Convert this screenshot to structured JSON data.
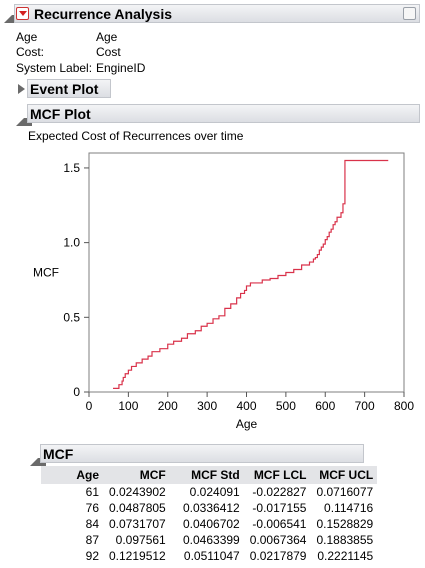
{
  "report": {
    "title": "Recurrence Analysis",
    "info": [
      {
        "label": "Age",
        "value": "Age"
      },
      {
        "label": "Cost:",
        "value": "Cost"
      },
      {
        "label": "System Label:",
        "value": "EngineID"
      }
    ]
  },
  "event_plot": {
    "title": "Event Plot"
  },
  "mcf_plot": {
    "title": "MCF Plot",
    "subtitle": "Expected Cost of Recurrences over time"
  },
  "chart_data": {
    "type": "line",
    "title": "Expected Cost of Recurrences over time",
    "xlabel": "Age",
    "ylabel": "MCF",
    "xlim": [
      0,
      800
    ],
    "ylim": [
      0,
      1.6
    ],
    "xticks": [
      "0",
      "100",
      "200",
      "300",
      "400",
      "500",
      "600",
      "700",
      "800"
    ],
    "yticks": [
      "0",
      "0.5",
      "1.0",
      "1.5"
    ],
    "grid": false,
    "line_color": "#d9324a",
    "step": true,
    "x": [
      61,
      76,
      84,
      87,
      92,
      100,
      108,
      120,
      135,
      150,
      160,
      180,
      200,
      215,
      235,
      250,
      270,
      285,
      300,
      315,
      330,
      345,
      360,
      375,
      385,
      395,
      400,
      410,
      420,
      440,
      460,
      480,
      500,
      520,
      540,
      560,
      570,
      575,
      580,
      585,
      590,
      595,
      600,
      605,
      610,
      615,
      620,
      625,
      630,
      640,
      645,
      650,
      700,
      760
    ],
    "y": [
      0.0244,
      0.0488,
      0.0732,
      0.0976,
      0.122,
      0.146,
      0.171,
      0.195,
      0.22,
      0.24,
      0.27,
      0.29,
      0.32,
      0.34,
      0.36,
      0.39,
      0.41,
      0.44,
      0.46,
      0.49,
      0.51,
      0.56,
      0.59,
      0.63,
      0.66,
      0.68,
      0.71,
      0.73,
      0.73,
      0.75,
      0.76,
      0.78,
      0.8,
      0.82,
      0.85,
      0.87,
      0.89,
      0.9,
      0.92,
      0.95,
      0.97,
      0.99,
      1.02,
      1.04,
      1.07,
      1.09,
      1.12,
      1.14,
      1.17,
      1.2,
      1.26,
      1.55,
      1.55,
      1.55
    ]
  },
  "mcf_table": {
    "title": "MCF",
    "columns": [
      "Age",
      "MCF",
      "MCF Std",
      "MCF LCL",
      "MCF UCL"
    ],
    "rows": [
      [
        "61",
        "0.0243902",
        "0.024091",
        "-0.022827",
        "0.0716077"
      ],
      [
        "76",
        "0.0487805",
        "0.0336412",
        "-0.017155",
        "0.114716"
      ],
      [
        "84",
        "0.0731707",
        "0.0406702",
        "-0.006541",
        "0.1528829"
      ],
      [
        "87",
        "0.097561",
        "0.0463399",
        "0.0067364",
        "0.1883855"
      ],
      [
        "92",
        "0.1219512",
        "0.0511047",
        "0.0217879",
        "0.2221145"
      ]
    ]
  }
}
